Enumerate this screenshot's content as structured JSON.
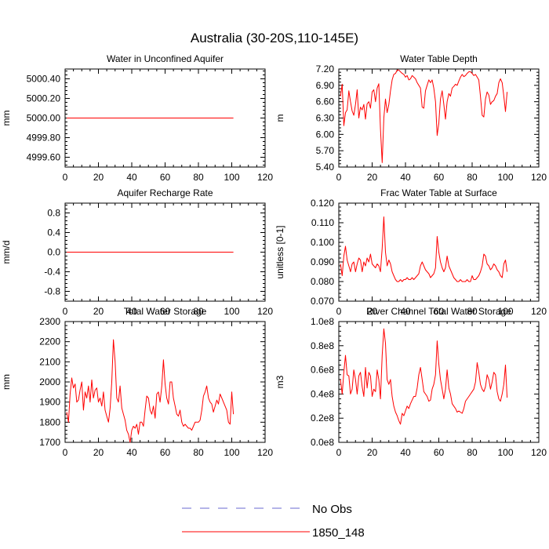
{
  "figure": {
    "title": "Australia (30-20S,110-145E)",
    "colors": {
      "obs": "#6a6ad0",
      "model": "#ff0000",
      "axis": "#000000"
    }
  },
  "legend": {
    "placement": "bottom-center",
    "items": [
      {
        "label": "No Obs",
        "style": "dashed",
        "color": "#6a6ad0"
      },
      {
        "label": "1850_148",
        "style": "solid",
        "color": "#ff0000"
      }
    ]
  },
  "chart_data": [
    {
      "type": "line",
      "title": "Water in Unconfined Aquifer",
      "ylabel": "mm",
      "xlim": [
        0,
        120
      ],
      "ylim": [
        4999.5,
        5000.5
      ],
      "xticks": [
        "0",
        "20",
        "40",
        "60",
        "80",
        "100",
        "120"
      ],
      "yticks": [
        4999.6,
        4999.8,
        5000.0,
        5000.2,
        5000.4
      ],
      "ytick_labels": [
        "4999.60",
        "4999.80",
        "5000.00",
        "5000.20",
        "5000.40"
      ],
      "series": [
        {
          "name": "1850_148",
          "x_start": 1,
          "x_step": 1,
          "values": [
            5000,
            5000,
            5000,
            5000,
            5000,
            5000,
            5000,
            5000,
            5000,
            5000,
            5000,
            5000,
            5000,
            5000,
            5000,
            5000,
            5000,
            5000,
            5000,
            5000,
            5000,
            5000,
            5000,
            5000,
            5000,
            5000,
            5000,
            5000,
            5000,
            5000,
            5000,
            5000,
            5000,
            5000,
            5000,
            5000,
            5000,
            5000,
            5000,
            5000,
            5000,
            5000,
            5000,
            5000,
            5000,
            5000,
            5000,
            5000,
            5000,
            5000,
            5000,
            5000,
            5000,
            5000,
            5000,
            5000,
            5000,
            5000,
            5000,
            5000,
            5000,
            5000,
            5000,
            5000,
            5000,
            5000,
            5000,
            5000,
            5000,
            5000,
            5000,
            5000,
            5000,
            5000,
            5000,
            5000,
            5000,
            5000,
            5000,
            5000,
            5000,
            5000,
            5000,
            5000,
            5000,
            5000,
            5000,
            5000,
            5000,
            5000,
            5000,
            5000,
            5000,
            5000,
            5000,
            5000,
            5000,
            5000,
            5000,
            5000,
            5000
          ]
        }
      ]
    },
    {
      "type": "line",
      "title": "Water Table Depth",
      "ylabel": "m",
      "xlim": [
        0,
        120
      ],
      "ylim": [
        5.4,
        7.2
      ],
      "xticks": [
        "0",
        "20",
        "40",
        "60",
        "80",
        "100",
        "120"
      ],
      "yticks": [
        5.4,
        5.7,
        6.0,
        6.3,
        6.6,
        6.9,
        7.2
      ],
      "ytick_labels": [
        "5.40",
        "5.70",
        "6.00",
        "6.30",
        "6.60",
        "6.90",
        "7.20"
      ],
      "series": [
        {
          "name": "1850_148",
          "x_start": 1,
          "x_step": 1,
          "values": [
            6.7,
            6.92,
            6.16,
            6.4,
            6.45,
            6.8,
            6.6,
            6.43,
            6.35,
            6.55,
            6.82,
            6.3,
            6.5,
            6.45,
            6.55,
            6.28,
            6.56,
            6.6,
            6.48,
            6.78,
            6.82,
            6.6,
            6.85,
            6.93,
            6.1,
            5.48,
            6.3,
            6.65,
            6.4,
            6.55,
            6.8,
            7.0,
            7.1,
            7.12,
            7.18,
            7.18,
            7.15,
            7.12,
            7.1,
            7.05,
            7.08,
            7.0,
            7.02,
            7.08,
            7.05,
            7.02,
            6.95,
            6.9,
            6.85,
            6.5,
            6.48,
            6.8,
            6.9,
            7.0,
            6.95,
            7.0,
            6.85,
            6.6,
            5.98,
            6.2,
            6.65,
            6.8,
            6.55,
            6.28,
            6.6,
            6.75,
            6.7,
            6.85,
            6.88,
            6.92,
            6.9,
            6.98,
            7.05,
            7.1,
            7.06,
            7.08,
            7.12,
            7.15,
            7.15,
            7.12,
            7.08,
            7.1,
            7.05,
            7.0,
            6.7,
            6.35,
            6.32,
            6.65,
            6.78,
            6.72,
            6.55,
            6.6,
            6.62,
            6.7,
            6.75,
            6.95,
            7.02,
            6.95,
            6.7,
            6.42,
            6.78
          ]
        }
      ]
    },
    {
      "type": "line",
      "title": "Aquifer Recharge Rate",
      "ylabel": "mm/d",
      "xlim": [
        0,
        120
      ],
      "ylim": [
        -1.0,
        1.0
      ],
      "xticks": [
        "0",
        "20",
        "40",
        "60",
        "80",
        "100",
        "120"
      ],
      "yticks": [
        -0.8,
        -0.4,
        0.0,
        0.4,
        0.8
      ],
      "ytick_labels": [
        "-0.8",
        "-0.4",
        "0.0",
        "0.4",
        "0.8"
      ],
      "series": [
        {
          "name": "1850_148",
          "x_start": 1,
          "x_step": 1,
          "values": [
            0,
            0,
            0,
            0,
            0,
            0,
            0,
            0,
            0,
            0,
            0,
            0,
            0,
            0,
            0,
            0,
            0,
            0,
            0,
            0,
            0,
            0,
            0,
            0,
            0,
            0,
            0,
            0,
            0,
            0,
            0,
            0,
            0,
            0,
            0,
            0,
            0,
            0,
            0,
            0,
            0,
            0,
            0,
            0,
            0,
            0,
            0,
            0,
            0,
            0,
            0,
            0,
            0,
            0,
            0,
            0,
            0,
            0,
            0,
            0,
            0,
            0,
            0,
            0,
            0,
            0,
            0,
            0,
            0,
            0,
            0,
            0,
            0,
            0,
            0,
            0,
            0,
            0,
            0,
            0,
            0,
            0,
            0,
            0,
            0,
            0,
            0,
            0,
            0,
            0,
            0,
            0,
            0,
            0,
            0,
            0,
            0,
            0,
            0,
            0,
            0
          ]
        }
      ]
    },
    {
      "type": "line",
      "title": "Frac Water Table at Surface",
      "ylabel": "unitless [0-1]",
      "xlim": [
        0,
        120
      ],
      "ylim": [
        0.07,
        0.12
      ],
      "xticks": [
        "0",
        "20",
        "40",
        "60",
        "80",
        "100",
        "120"
      ],
      "yticks": [
        0.07,
        0.08,
        0.09,
        0.1,
        0.11,
        0.12
      ],
      "ytick_labels": [
        "0.070",
        "0.080",
        "0.090",
        "0.100",
        "0.110",
        "0.120"
      ],
      "series": [
        {
          "name": "1850_148",
          "x_start": 1,
          "x_step": 1,
          "values": [
            0.089,
            0.083,
            0.093,
            0.098,
            0.091,
            0.088,
            0.085,
            0.089,
            0.09,
            0.085,
            0.089,
            0.092,
            0.091,
            0.085,
            0.09,
            0.088,
            0.092,
            0.09,
            0.094,
            0.089,
            0.088,
            0.087,
            0.089,
            0.088,
            0.085,
            0.097,
            0.113,
            0.095,
            0.088,
            0.091,
            0.089,
            0.085,
            0.083,
            0.081,
            0.08,
            0.08,
            0.081,
            0.08,
            0.081,
            0.081,
            0.082,
            0.081,
            0.081,
            0.082,
            0.081,
            0.082,
            0.083,
            0.084,
            0.088,
            0.09,
            0.088,
            0.086,
            0.085,
            0.084,
            0.082,
            0.083,
            0.084,
            0.087,
            0.103,
            0.095,
            0.09,
            0.087,
            0.085,
            0.087,
            0.093,
            0.088,
            0.086,
            0.084,
            0.082,
            0.081,
            0.08,
            0.08,
            0.081,
            0.08,
            0.08,
            0.08,
            0.081,
            0.08,
            0.08,
            0.083,
            0.081,
            0.081,
            0.082,
            0.083,
            0.085,
            0.088,
            0.094,
            0.093,
            0.089,
            0.088,
            0.086,
            0.087,
            0.089,
            0.088,
            0.086,
            0.085,
            0.083,
            0.082,
            0.089,
            0.091,
            0.085
          ]
        }
      ]
    },
    {
      "type": "line",
      "title": "Total Water Storage",
      "ylabel": "mm",
      "xlim": [
        0,
        120
      ],
      "ylim": [
        1700,
        2300
      ],
      "xticks": [
        "0",
        "20",
        "40",
        "60",
        "80",
        "100",
        "120"
      ],
      "yticks": [
        1700,
        1800,
        1900,
        2000,
        2100,
        2200,
        2300
      ],
      "ytick_labels": [
        "1700",
        "1800",
        "1900",
        "2000",
        "2100",
        "2200",
        "2300"
      ],
      "series": [
        {
          "name": "1850_148",
          "x_start": 1,
          "x_step": 1,
          "values": [
            1850,
            1800,
            1940,
            2020,
            1970,
            1990,
            1900,
            1910,
            1960,
            2000,
            1860,
            1950,
            1920,
            1980,
            1900,
            2010,
            1920,
            1960,
            1970,
            1900,
            1920,
            1880,
            1950,
            1860,
            1830,
            1800,
            1870,
            2000,
            2210,
            2100,
            1920,
            1900,
            1980,
            1870,
            1840,
            1810,
            1760,
            1740,
            1700,
            1760,
            1780,
            1770,
            1790,
            1740,
            1800,
            1800,
            1780,
            1860,
            1930,
            1920,
            1860,
            1840,
            1880,
            1820,
            1940,
            1950,
            1900,
            1980,
            2110,
            1990,
            1920,
            1890,
            2000,
            2000,
            1920,
            1880,
            1840,
            1830,
            1860,
            1800,
            1780,
            1790,
            1780,
            1770,
            1770,
            1760,
            1780,
            1800,
            1800,
            1800,
            1810,
            1860,
            1930,
            1950,
            1980,
            1920,
            1900,
            1890,
            1850,
            1880,
            1910,
            1890,
            1940,
            1920,
            1900,
            1880,
            1860,
            1800,
            1790,
            1950,
            1840
          ]
        }
      ]
    },
    {
      "type": "line",
      "title": "River Channel Total Water Storage",
      "ylabel": "m3",
      "xlim": [
        0,
        120
      ],
      "ylim": [
        0,
        100000000
      ],
      "xticks": [
        "0",
        "20",
        "40",
        "60",
        "80",
        "100",
        "120"
      ],
      "yticks": [
        0,
        20000000,
        40000000,
        60000000,
        80000000,
        100000000
      ],
      "ytick_labels": [
        "0.0e8",
        "0.2e8",
        "0.4e8",
        "0.6e8",
        "0.8e8",
        "1.0e8"
      ],
      "series": [
        {
          "name": "1850_148",
          "x_start": 1,
          "x_step": 1,
          "values": [
            52000000,
            40000000,
            58000000,
            72000000,
            56000000,
            55000000,
            40000000,
            44000000,
            60000000,
            52000000,
            40000000,
            55000000,
            58000000,
            46000000,
            38000000,
            62000000,
            45000000,
            58000000,
            55000000,
            38000000,
            44000000,
            42000000,
            60000000,
            52000000,
            36000000,
            72000000,
            94000000,
            82000000,
            52000000,
            48000000,
            52000000,
            38000000,
            30000000,
            25000000,
            22000000,
            18000000,
            15000000,
            24000000,
            22000000,
            26000000,
            30000000,
            28000000,
            32000000,
            35000000,
            38000000,
            38000000,
            45000000,
            56000000,
            62000000,
            52000000,
            42000000,
            40000000,
            38000000,
            34000000,
            35000000,
            44000000,
            48000000,
            56000000,
            84000000,
            65000000,
            52000000,
            44000000,
            36000000,
            44000000,
            60000000,
            45000000,
            40000000,
            32000000,
            30000000,
            28000000,
            25000000,
            26000000,
            25000000,
            24000000,
            28000000,
            34000000,
            36000000,
            38000000,
            40000000,
            42000000,
            44000000,
            50000000,
            66000000,
            58000000,
            48000000,
            44000000,
            42000000,
            46000000,
            56000000,
            52000000,
            44000000,
            50000000,
            58000000,
            56000000,
            42000000,
            36000000,
            34000000,
            40000000,
            48000000,
            64000000,
            37000000
          ]
        }
      ]
    }
  ]
}
